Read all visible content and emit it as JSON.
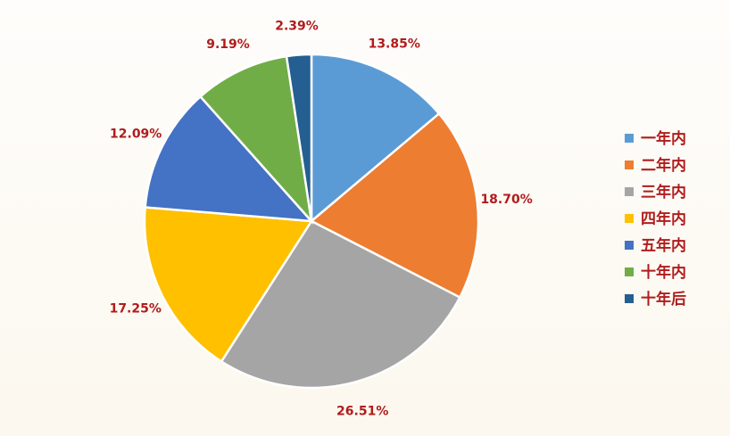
{
  "chart_data": {
    "type": "pie",
    "start": "top",
    "direction": "clockwise",
    "legend_position": "right",
    "slices": [
      {
        "name": "一年内",
        "value": 13.85,
        "label": "13.85%",
        "color": "#5b9bd5"
      },
      {
        "name": "二年内",
        "value": 18.7,
        "label": "18.70%",
        "color": "#ed7d31"
      },
      {
        "name": "三年内",
        "value": 26.51,
        "label": "26.51%",
        "color": "#a5a5a5"
      },
      {
        "name": "四年内",
        "value": 17.25,
        "label": "17.25%",
        "color": "#ffc000"
      },
      {
        "name": "五年内",
        "value": 12.09,
        "label": "12.09%",
        "color": "#4472c4"
      },
      {
        "name": "十年内",
        "value": 9.19,
        "label": "9.19%",
        "color": "#70ad47"
      },
      {
        "name": "十年后",
        "value": 2.39,
        "label": "2.39%",
        "color": "#255e91"
      }
    ]
  }
}
